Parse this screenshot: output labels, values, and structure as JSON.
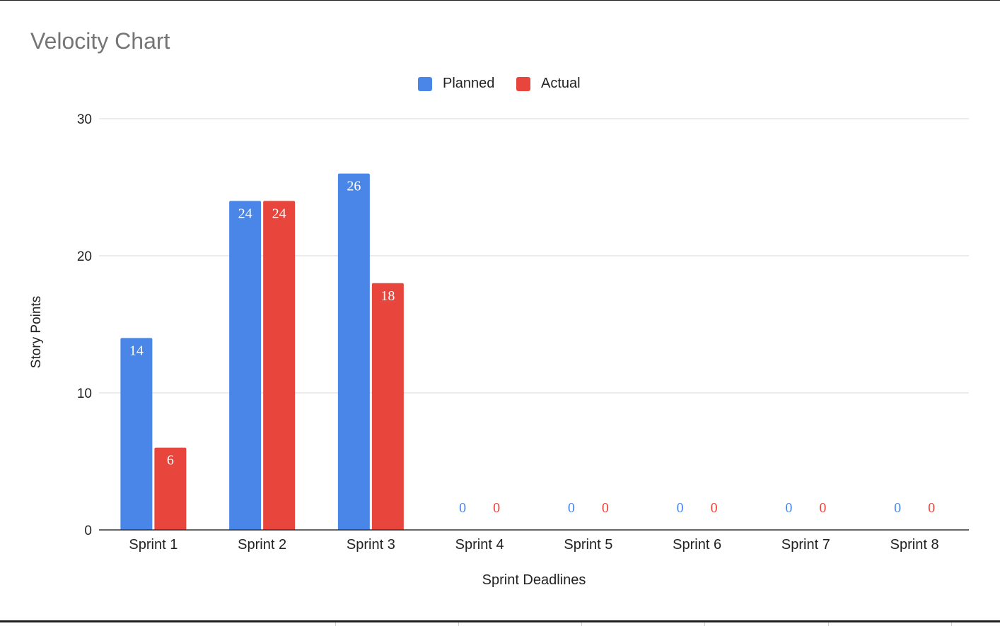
{
  "colors": {
    "planned": "#4a86e8",
    "actual": "#e8453c",
    "grid": "#d9d9d9",
    "axis": "#333333",
    "title": "#757575"
  },
  "chart_data": {
    "type": "bar",
    "title": "Velocity Chart",
    "xlabel": "Sprint Deadlines",
    "ylabel": "Story Points",
    "categories": [
      "Sprint 1",
      "Sprint 2",
      "Sprint 3",
      "Sprint 4",
      "Sprint 5",
      "Sprint 6",
      "Sprint 7",
      "Sprint 8"
    ],
    "series": [
      {
        "name": "Planned",
        "color": "#4a86e8",
        "values": [
          14,
          24,
          26,
          0,
          0,
          0,
          0,
          0
        ]
      },
      {
        "name": "Actual",
        "color": "#e8453c",
        "values": [
          6,
          24,
          18,
          0,
          0,
          0,
          0,
          0
        ]
      }
    ],
    "ylim": [
      0,
      30
    ],
    "yticks": [
      "0",
      "10",
      "20",
      "30"
    ],
    "legend_position": "top-center",
    "grid": true,
    "data_labels": true
  }
}
